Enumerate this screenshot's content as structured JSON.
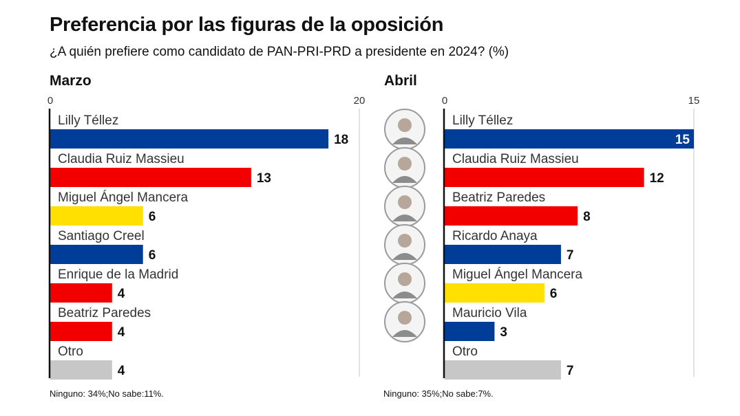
{
  "title": "Preferencia por las figuras de la oposición",
  "subtitle": "¿A quién prefiere como candidato de PAN-PRI-PRD a presidente en 2024? (%)",
  "colors": {
    "blue": "#003d99",
    "red": "#f20000",
    "yellow": "#ffe000",
    "gray": "#c7c7c7",
    "grid": "#d9d9d9",
    "axis": "#111111"
  },
  "chart_data": [
    {
      "type": "bar",
      "orientation": "horizontal",
      "title": "Marzo",
      "categories": [
        "Lilly Téllez",
        "Claudia Ruiz Massieu",
        "Miguel Ángel Mancera",
        "Santiago Creel",
        "Enrique de la Madrid",
        "Beatriz Paredes",
        "Otro"
      ],
      "values": [
        18,
        13,
        6,
        6,
        4,
        4,
        4
      ],
      "colors": [
        "blue",
        "red",
        "yellow",
        "blue",
        "red",
        "red",
        "gray"
      ],
      "xlim": [
        0,
        20
      ],
      "ticks": [
        0,
        20
      ],
      "grid": true,
      "footnote": "Ninguno: 34%;No sabe:11%."
    },
    {
      "type": "bar",
      "orientation": "horizontal",
      "title": "Abril",
      "categories": [
        "Lilly Téllez",
        "Claudia Ruiz Massieu",
        "Beatriz Paredes",
        "Ricardo Anaya",
        "Miguel Ángel Mancera",
        "Mauricio Vila",
        "Otro"
      ],
      "values": [
        15,
        12,
        8,
        7,
        6,
        3,
        7
      ],
      "colors": [
        "blue",
        "red",
        "red",
        "blue",
        "yellow",
        "blue",
        "gray"
      ],
      "xlim": [
        0,
        15
      ],
      "ticks": [
        0,
        15
      ],
      "grid": true,
      "value_label_inside": [
        true,
        false,
        false,
        false,
        false,
        false,
        false
      ],
      "portraits": [
        "Lilly Téllez",
        "Claudia Ruiz Massieu",
        "Beatriz Paredes",
        "Ricardo Anaya",
        "Miguel Ángel Mancera",
        "Mauricio Vila"
      ],
      "footnote": "Ninguno: 35%;No sabe:7%."
    }
  ]
}
